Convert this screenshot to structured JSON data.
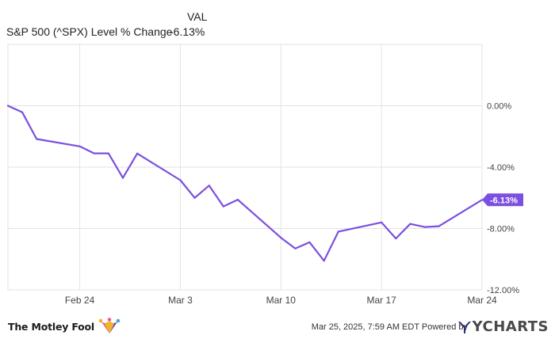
{
  "legend": {
    "column_header": "VAL",
    "series_name": "S&P 500 (^SPX) Level % Change",
    "series_value": "-6.13%"
  },
  "chart_data": {
    "type": "line",
    "title": "",
    "xlabel": "",
    "ylabel": "",
    "x_ticks": [
      "Feb 24",
      "Mar 3",
      "Mar 10",
      "Mar 17",
      "Mar 24"
    ],
    "y_ticks": [
      "0.00%",
      "-4.00%",
      "-8.00%",
      "-12.00%"
    ],
    "ylim": [
      -12.0,
      4.0
    ],
    "grid": true,
    "color": "#7b4fe0",
    "end_label": "-6.13%",
    "series": [
      {
        "name": "S&P 500 (^SPX) Level % Change",
        "x": [
          "2025-02-19",
          "2025-02-20",
          "2025-02-21",
          "2025-02-24",
          "2025-02-25",
          "2025-02-26",
          "2025-02-27",
          "2025-02-28",
          "2025-03-03",
          "2025-03-04",
          "2025-03-05",
          "2025-03-06",
          "2025-03-07",
          "2025-03-10",
          "2025-03-11",
          "2025-03-12",
          "2025-03-13",
          "2025-03-14",
          "2025-03-17",
          "2025-03-18",
          "2025-03-19",
          "2025-03-20",
          "2025-03-21",
          "2025-03-24"
        ],
        "values": [
          0.0,
          -0.43,
          -2.17,
          -2.65,
          -3.1,
          -3.1,
          -4.7,
          -3.11,
          -4.85,
          -6.0,
          -5.2,
          -6.56,
          -6.12,
          -8.6,
          -9.3,
          -8.9,
          -10.1,
          -8.2,
          -7.6,
          -8.65,
          -7.7,
          -7.9,
          -7.85,
          -6.13
        ]
      }
    ]
  },
  "footer": {
    "brand": "The Motley Fool",
    "timestamp": "Mar 25, 2025, 7:59 AM EDT Powered by",
    "ycharts": "YCHARTS"
  }
}
